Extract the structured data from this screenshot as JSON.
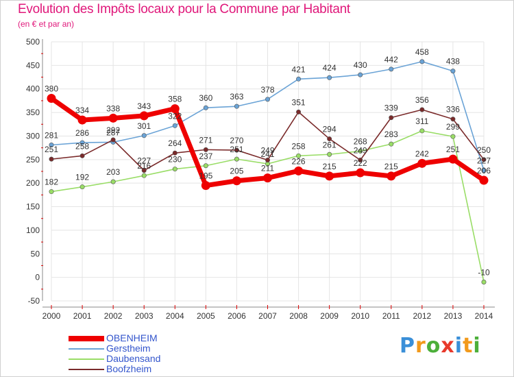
{
  "title": "Evolution des Impôts locaux pour la Commune par Habitant",
  "subtitle": "(en € et par an)",
  "logo": {
    "text": "Proxiti",
    "colors": [
      "#3a8fd8",
      "#f29a1c",
      "#4caf3a",
      "#e8392b",
      "#3a8fd8",
      "#f29a1c",
      "#4caf3a"
    ]
  },
  "chart_data": {
    "type": "line",
    "title": "Evolution des Impôts locaux pour la Commune par Habitant",
    "subtitle": "(en € et par an)",
    "xlabel": "",
    "ylabel": "",
    "categories": [
      "2000",
      "2001",
      "2002",
      "2003",
      "2004",
      "2005",
      "2006",
      "2007",
      "2008",
      "2009",
      "2010",
      "2011",
      "2012",
      "2013",
      "2014"
    ],
    "ylim": [
      -50,
      500
    ],
    "yticks": [
      -50,
      0,
      50,
      100,
      150,
      200,
      250,
      300,
      350,
      400,
      450,
      500
    ],
    "grid": true,
    "legend_position": "bottom-left",
    "series": [
      {
        "name": "OBENHEIM",
        "color": "#ee0000",
        "emphasis": true,
        "values": [
          380,
          334,
          338,
          343,
          358,
          195,
          205,
          211,
          226,
          215,
          222,
          215,
          242,
          251,
          206
        ]
      },
      {
        "name": "Gerstheim",
        "color": "#6aa3d6",
        "emphasis": false,
        "values": [
          281,
          286,
          287,
          301,
          322,
          360,
          363,
          378,
          421,
          424,
          430,
          442,
          458,
          438,
          227
        ]
      },
      {
        "name": "Daubensand",
        "color": "#99dd66",
        "emphasis": false,
        "values": [
          182,
          192,
          203,
          216,
          230,
          237,
          251,
          241,
          258,
          261,
          268,
          283,
          311,
          299,
          -10
        ]
      },
      {
        "name": "Boofzheim",
        "color": "#7a2a2a",
        "emphasis": false,
        "values": [
          251,
          258,
          292,
          227,
          264,
          271,
          270,
          249,
          351,
          294,
          249,
          339,
          356,
          336,
          250
        ]
      }
    ]
  }
}
